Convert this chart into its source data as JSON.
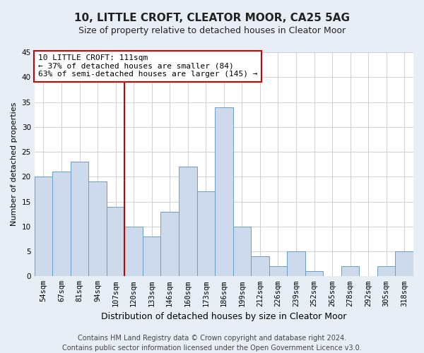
{
  "title": "10, LITTLE CROFT, CLEATOR MOOR, CA25 5AG",
  "subtitle": "Size of property relative to detached houses in Cleator Moor",
  "xlabel": "Distribution of detached houses by size in Cleator Moor",
  "ylabel": "Number of detached properties",
  "categories": [
    "54sqm",
    "67sqm",
    "81sqm",
    "94sqm",
    "107sqm",
    "120sqm",
    "133sqm",
    "146sqm",
    "160sqm",
    "173sqm",
    "186sqm",
    "199sqm",
    "212sqm",
    "226sqm",
    "239sqm",
    "252sqm",
    "265sqm",
    "278sqm",
    "292sqm",
    "305sqm",
    "318sqm"
  ],
  "values": [
    20,
    21,
    23,
    19,
    14,
    10,
    8,
    13,
    22,
    17,
    34,
    10,
    4,
    2,
    5,
    1,
    0,
    2,
    0,
    2,
    5
  ],
  "bar_color": "#cddaeb",
  "bar_edge_color": "#6a9ec5",
  "vline_x_index": 4,
  "vline_color": "#cc0000",
  "ylim": [
    0,
    45
  ],
  "yticks": [
    0,
    5,
    10,
    15,
    20,
    25,
    30,
    35,
    40,
    45
  ],
  "annotation_box_text": "10 LITTLE CROFT: 111sqm\n← 37% of detached houses are smaller (84)\n63% of semi-detached houses are larger (145) →",
  "footer_line1": "Contains HM Land Registry data © Crown copyright and database right 2024.",
  "footer_line2": "Contains public sector information licensed under the Open Government Licence v3.0.",
  "background_color": "#e8eef5",
  "plot_bg_color": "#ffffff",
  "grid_color": "#c8c8d0",
  "title_fontsize": 11,
  "subtitle_fontsize": 9,
  "xlabel_fontsize": 9,
  "ylabel_fontsize": 8,
  "tick_fontsize": 7.5,
  "annotation_fontsize": 8,
  "footer_fontsize": 7
}
